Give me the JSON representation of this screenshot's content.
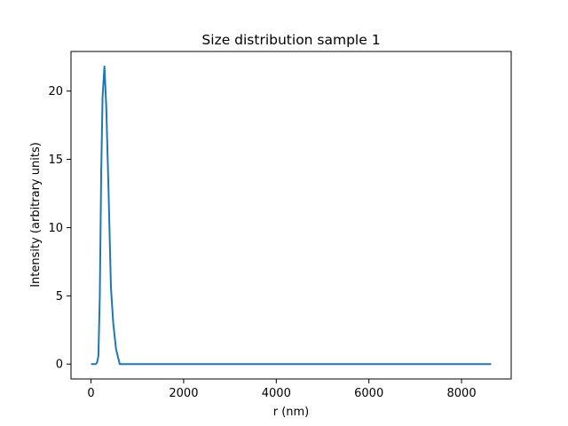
{
  "chart_data": {
    "type": "line",
    "title": "Size distribution sample 1",
    "xlabel": "r (nm)",
    "ylabel": "Intensity (arbitrary units)",
    "xlim": [
      -432,
      9072
    ],
    "ylim": [
      -1.09,
      22.9
    ],
    "xticks": [
      0,
      2000,
      4000,
      6000,
      8000
    ],
    "xtick_labels": [
      "0",
      "2000",
      "4000",
      "6000",
      "8000"
    ],
    "yticks": [
      0,
      5,
      10,
      15,
      20
    ],
    "ytick_labels": [
      "0",
      "5",
      "10",
      "15",
      "20"
    ],
    "grid": false,
    "legend": false,
    "series": [
      {
        "color": "#1f77b4",
        "x": [
          0,
          100,
          130,
          160,
          190,
          220,
          250,
          290,
          330,
          380,
          430,
          480,
          540,
          620,
          700,
          800,
          1000,
          2000,
          4000,
          6000,
          8000,
          8640
        ],
        "y": [
          0,
          0,
          0.1,
          0.6,
          5.0,
          14.0,
          19.6,
          21.8,
          18.8,
          12.5,
          5.6,
          3.0,
          1.1,
          0.0,
          0,
          0,
          0,
          0,
          0,
          0,
          0,
          0
        ]
      }
    ]
  }
}
